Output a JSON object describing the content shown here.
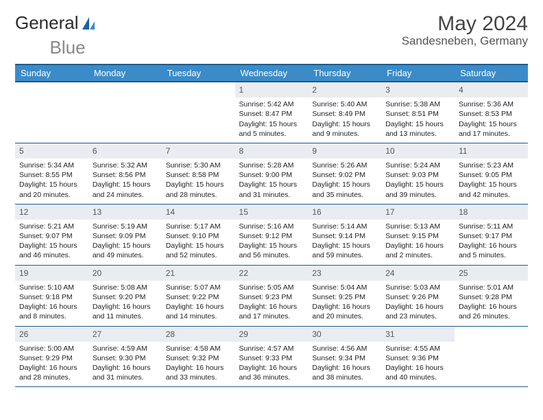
{
  "brand": {
    "text1": "General",
    "text2": "Blue"
  },
  "title": "May 2024",
  "location": "Sandesneben, Germany",
  "day_headers": [
    "Sunday",
    "Monday",
    "Tuesday",
    "Wednesday",
    "Thursday",
    "Friday",
    "Saturday"
  ],
  "colors": {
    "header_bg": "#3b8bc9",
    "header_border": "#1f5a88",
    "daynum_bg": "#e9edf1",
    "logo_accent": "#1f5fa8"
  },
  "weeks": [
    [
      null,
      null,
      null,
      {
        "n": "1",
        "sunrise": "5:42 AM",
        "sunset": "8:47 PM",
        "daylight": "15 hours and 5 minutes."
      },
      {
        "n": "2",
        "sunrise": "5:40 AM",
        "sunset": "8:49 PM",
        "daylight": "15 hours and 9 minutes."
      },
      {
        "n": "3",
        "sunrise": "5:38 AM",
        "sunset": "8:51 PM",
        "daylight": "15 hours and 13 minutes."
      },
      {
        "n": "4",
        "sunrise": "5:36 AM",
        "sunset": "8:53 PM",
        "daylight": "15 hours and 17 minutes."
      }
    ],
    [
      {
        "n": "5",
        "sunrise": "5:34 AM",
        "sunset": "8:55 PM",
        "daylight": "15 hours and 20 minutes."
      },
      {
        "n": "6",
        "sunrise": "5:32 AM",
        "sunset": "8:56 PM",
        "daylight": "15 hours and 24 minutes."
      },
      {
        "n": "7",
        "sunrise": "5:30 AM",
        "sunset": "8:58 PM",
        "daylight": "15 hours and 28 minutes."
      },
      {
        "n": "8",
        "sunrise": "5:28 AM",
        "sunset": "9:00 PM",
        "daylight": "15 hours and 31 minutes."
      },
      {
        "n": "9",
        "sunrise": "5:26 AM",
        "sunset": "9:02 PM",
        "daylight": "15 hours and 35 minutes."
      },
      {
        "n": "10",
        "sunrise": "5:24 AM",
        "sunset": "9:03 PM",
        "daylight": "15 hours and 39 minutes."
      },
      {
        "n": "11",
        "sunrise": "5:23 AM",
        "sunset": "9:05 PM",
        "daylight": "15 hours and 42 minutes."
      }
    ],
    [
      {
        "n": "12",
        "sunrise": "5:21 AM",
        "sunset": "9:07 PM",
        "daylight": "15 hours and 46 minutes."
      },
      {
        "n": "13",
        "sunrise": "5:19 AM",
        "sunset": "9:09 PM",
        "daylight": "15 hours and 49 minutes."
      },
      {
        "n": "14",
        "sunrise": "5:17 AM",
        "sunset": "9:10 PM",
        "daylight": "15 hours and 52 minutes."
      },
      {
        "n": "15",
        "sunrise": "5:16 AM",
        "sunset": "9:12 PM",
        "daylight": "15 hours and 56 minutes."
      },
      {
        "n": "16",
        "sunrise": "5:14 AM",
        "sunset": "9:14 PM",
        "daylight": "15 hours and 59 minutes."
      },
      {
        "n": "17",
        "sunrise": "5:13 AM",
        "sunset": "9:15 PM",
        "daylight": "16 hours and 2 minutes."
      },
      {
        "n": "18",
        "sunrise": "5:11 AM",
        "sunset": "9:17 PM",
        "daylight": "16 hours and 5 minutes."
      }
    ],
    [
      {
        "n": "19",
        "sunrise": "5:10 AM",
        "sunset": "9:18 PM",
        "daylight": "16 hours and 8 minutes."
      },
      {
        "n": "20",
        "sunrise": "5:08 AM",
        "sunset": "9:20 PM",
        "daylight": "16 hours and 11 minutes."
      },
      {
        "n": "21",
        "sunrise": "5:07 AM",
        "sunset": "9:22 PM",
        "daylight": "16 hours and 14 minutes."
      },
      {
        "n": "22",
        "sunrise": "5:05 AM",
        "sunset": "9:23 PM",
        "daylight": "16 hours and 17 minutes."
      },
      {
        "n": "23",
        "sunrise": "5:04 AM",
        "sunset": "9:25 PM",
        "daylight": "16 hours and 20 minutes."
      },
      {
        "n": "24",
        "sunrise": "5:03 AM",
        "sunset": "9:26 PM",
        "daylight": "16 hours and 23 minutes."
      },
      {
        "n": "25",
        "sunrise": "5:01 AM",
        "sunset": "9:28 PM",
        "daylight": "16 hours and 26 minutes."
      }
    ],
    [
      {
        "n": "26",
        "sunrise": "5:00 AM",
        "sunset": "9:29 PM",
        "daylight": "16 hours and 28 minutes."
      },
      {
        "n": "27",
        "sunrise": "4:59 AM",
        "sunset": "9:30 PM",
        "daylight": "16 hours and 31 minutes."
      },
      {
        "n": "28",
        "sunrise": "4:58 AM",
        "sunset": "9:32 PM",
        "daylight": "16 hours and 33 minutes."
      },
      {
        "n": "29",
        "sunrise": "4:57 AM",
        "sunset": "9:33 PM",
        "daylight": "16 hours and 36 minutes."
      },
      {
        "n": "30",
        "sunrise": "4:56 AM",
        "sunset": "9:34 PM",
        "daylight": "16 hours and 38 minutes."
      },
      {
        "n": "31",
        "sunrise": "4:55 AM",
        "sunset": "9:36 PM",
        "daylight": "16 hours and 40 minutes."
      },
      null
    ]
  ],
  "labels": {
    "sunrise": "Sunrise:",
    "sunset": "Sunset:",
    "daylight": "Daylight:"
  }
}
